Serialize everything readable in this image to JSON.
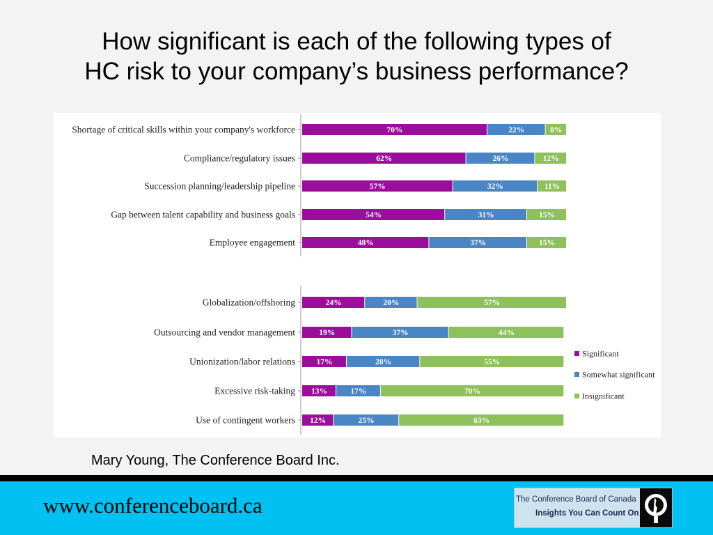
{
  "slide": {
    "title_line1": "How significant is each of the following types of",
    "title_line2": "HC risk to your company’s business performance?",
    "credit": "Mary Young,  The Conference Board Inc.",
    "footer_url": "www.conferenceboard.ca",
    "logo_name": "The Conference Board of Canada",
    "logo_tagline": "Insights You Can Count On"
  },
  "colors": {
    "significant": "#9b0d9b",
    "somewhat_significant": "#4a86c5",
    "insignificant": "#8ec159",
    "footer_band": "#00c1f2"
  },
  "chart_data": [
    {
      "type": "bar",
      "orientation": "horizontal",
      "stacked": true,
      "percent": true,
      "categories": [
        "Shortage of critical skills within your company's workforce",
        "Compliance/regulatory issues",
        "Succession planning/leadership pipeline",
        "Gap between talent capability and business goals",
        "Employee engagement"
      ],
      "series": [
        {
          "name": "Significant",
          "values": [
            70,
            62,
            57,
            54,
            48
          ],
          "labels": [
            "70%",
            "62%",
            "57%",
            "54%",
            "48%"
          ]
        },
        {
          "name": "Somewhat significant",
          "values": [
            22,
            26,
            32,
            31,
            37
          ],
          "labels": [
            "22%",
            "26%",
            "32%",
            "31%",
            "37%"
          ]
        },
        {
          "name": "Insignificant",
          "values": [
            8,
            12,
            11,
            15,
            15
          ],
          "labels": [
            "8%",
            "12%",
            "11%",
            "15%",
            "15%"
          ]
        }
      ],
      "xlim": [
        0,
        100
      ]
    },
    {
      "type": "bar",
      "orientation": "horizontal",
      "stacked": true,
      "percent": true,
      "categories": [
        "Globalization/offshoring",
        "Outsourcing and vendor management",
        "Unionization/labor relations",
        "Excessive risk-taking",
        "Use of contingent workers"
      ],
      "series": [
        {
          "name": "Significant",
          "values": [
            24,
            19,
            17,
            13,
            12
          ],
          "labels": [
            "24%",
            "19%",
            "17%",
            "13%",
            "12%"
          ]
        },
        {
          "name": "Somewhat significant",
          "values": [
            20,
            37,
            28,
            17,
            25
          ],
          "labels": [
            "20%",
            "37%",
            "28%",
            "17%",
            "25%"
          ]
        },
        {
          "name": "Insignificant",
          "values": [
            57,
            44,
            55,
            70,
            63
          ],
          "labels": [
            "57%",
            "44%",
            "55%",
            "70%",
            "63%"
          ]
        }
      ],
      "xlim": [
        0,
        101
      ]
    }
  ],
  "legend": {
    "placement": "right",
    "items": [
      "Significant",
      "Somewhat significant",
      "Insignificant"
    ]
  }
}
